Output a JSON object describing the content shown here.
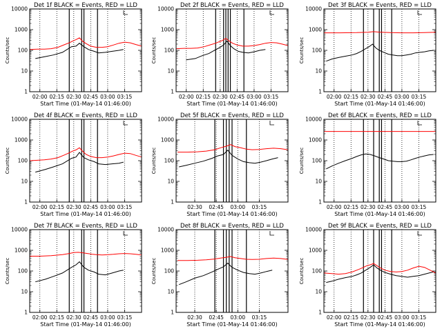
{
  "figure": {
    "background": "#ffffff",
    "axis_color": "#000000",
    "events_color": "#000000",
    "lld_color": "#ff0000"
  },
  "chart_data": [
    {
      "type": "line",
      "title": "Det 1f BLACK = Events, RED = LLD",
      "xlabel": "Start Time (01-May-14 01:46:00)",
      "ylabel": "Counts/sec",
      "yscale": "log",
      "ylim": [
        1,
        10000
      ],
      "ytick_labels": [
        "1",
        "10",
        "100",
        "1000",
        "10000"
      ],
      "xtick_labels": [
        "02:00",
        "02:15",
        "02:30",
        "02:45",
        "03:00",
        "03:15"
      ],
      "xlim_min": [
        111,
        210
      ],
      "xtick_min": [
        120,
        135,
        150,
        165,
        180,
        195
      ],
      "markers_min": [
        146,
        157,
        159,
        171
      ],
      "series": [
        {
          "name": "Events",
          "x_min": [
            116,
            125,
            132,
            140,
            148,
            152,
            155,
            159,
            163,
            168,
            172,
            178,
            184,
            190,
            194
          ],
          "y": [
            40,
            50,
            60,
            80,
            150,
            160,
            220,
            150,
            110,
            90,
            75,
            80,
            90,
            100,
            110
          ]
        },
        {
          "name": "LLD",
          "x_min": [
            111,
            118,
            124,
            130,
            136,
            142,
            146,
            149,
            152,
            155,
            158,
            161,
            165,
            170,
            175,
            180,
            185,
            190,
            195,
            200,
            205,
            210
          ],
          "y": [
            110,
            115,
            115,
            120,
            140,
            190,
            230,
            280,
            330,
            400,
            270,
            210,
            160,
            140,
            140,
            150,
            180,
            220,
            250,
            230,
            190,
            160
          ]
        }
      ]
    },
    {
      "type": "line",
      "title": "Det 2f BLACK = Events, RED = LLD",
      "xlabel": "Start Time (01-May-14 01:46:00)",
      "ylabel": "Counts/sec",
      "yscale": "log",
      "ylim": [
        1,
        10000
      ],
      "ytick_labels": [
        "1",
        "10",
        "100",
        "1000",
        "10000"
      ],
      "xtick_labels": [
        "02:00",
        "02:15",
        "02:30",
        "02:45",
        "03:00",
        "03:15"
      ],
      "xlim_min": [
        111,
        210
      ],
      "xtick_min": [
        120,
        135,
        150,
        165,
        180,
        195
      ],
      "markers_min": [
        146,
        153,
        155,
        157,
        159,
        171
      ],
      "series": [
        {
          "name": "Events",
          "x_min": [
            120,
            128,
            134,
            140,
            145,
            150,
            153,
            156,
            159,
            162,
            166,
            170,
            175,
            180,
            185,
            190
          ],
          "y": [
            35,
            40,
            55,
            70,
            100,
            140,
            180,
            280,
            170,
            120,
            90,
            80,
            75,
            85,
            100,
            110
          ]
        },
        {
          "name": "LLD",
          "x_min": [
            111,
            118,
            124,
            130,
            136,
            142,
            146,
            149,
            152,
            155,
            158,
            161,
            165,
            170,
            175,
            180,
            185,
            190,
            195,
            200,
            205,
            210
          ],
          "y": [
            120,
            125,
            125,
            130,
            150,
            190,
            220,
            260,
            300,
            380,
            280,
            220,
            180,
            160,
            160,
            170,
            190,
            220,
            240,
            230,
            200,
            170
          ]
        }
      ]
    },
    {
      "type": "line",
      "title": "Det 3f BLACK = Events, RED = LLD",
      "xlabel": "Start Time (01-May-14 01:46:00)",
      "ylabel": "Counts/sec",
      "yscale": "log",
      "ylim": [
        1,
        10000
      ],
      "ytick_labels": [
        "1",
        "10",
        "100",
        "1000",
        "10000"
      ],
      "xtick_labels": [
        "02:00",
        "02:15",
        "02:30",
        "02:45",
        "03:00",
        "03:15"
      ],
      "xlim_min": [
        111,
        210
      ],
      "xtick_min": [
        120,
        135,
        150,
        165,
        180,
        195
      ],
      "markers_min": [
        146,
        155,
        160,
        162,
        171
      ],
      "series": [
        {
          "name": "Events",
          "x_min": [
            113,
            118,
            124,
            130,
            136,
            140,
            144,
            148,
            151,
            154,
            157,
            160,
            164,
            168,
            172,
            176,
            180,
            184,
            188,
            192,
            196,
            200,
            204,
            208
          ],
          "y": [
            30,
            38,
            45,
            52,
            60,
            70,
            90,
            120,
            150,
            200,
            130,
            100,
            80,
            65,
            60,
            55,
            55,
            60,
            65,
            75,
            80,
            85,
            95,
            100
          ]
        },
        {
          "name": "LLD",
          "x_min": [
            111,
            125,
            140,
            150,
            155,
            160,
            170,
            180,
            190,
            200,
            210
          ],
          "y": [
            700,
            700,
            720,
            750,
            800,
            760,
            720,
            700,
            700,
            720,
            750
          ]
        }
      ]
    },
    {
      "type": "line",
      "title": "Det 4f BLACK = Events, RED = LLD",
      "xlabel": "Start Time (01-May-14 01:46:00)",
      "ylabel": "Counts/sec",
      "yscale": "log",
      "ylim": [
        1,
        10000
      ],
      "ytick_labels": [
        "1",
        "10",
        "100",
        "1000",
        "10000"
      ],
      "xtick_labels": [
        "02:00",
        "02:15",
        "02:30",
        "02:45",
        "03:00",
        "03:15"
      ],
      "xlim_min": [
        111,
        210
      ],
      "xtick_min": [
        120,
        135,
        150,
        165,
        180,
        195
      ],
      "markers_min": [
        146,
        157,
        159,
        171
      ],
      "series": [
        {
          "name": "Events",
          "x_min": [
            116,
            125,
            132,
            140,
            148,
            152,
            155,
            159,
            163,
            168,
            172,
            178,
            184,
            190,
            194
          ],
          "y": [
            28,
            38,
            50,
            70,
            130,
            150,
            250,
            140,
            110,
            90,
            70,
            65,
            70,
            75,
            85
          ]
        },
        {
          "name": "LLD",
          "x_min": [
            111,
            118,
            124,
            130,
            136,
            142,
            146,
            149,
            152,
            155,
            158,
            161,
            165,
            170,
            175,
            180,
            185,
            190,
            195,
            200,
            205,
            210
          ],
          "y": [
            100,
            105,
            110,
            120,
            140,
            190,
            240,
            290,
            330,
            420,
            280,
            200,
            160,
            140,
            140,
            150,
            170,
            200,
            230,
            220,
            180,
            150
          ]
        }
      ]
    },
    {
      "type": "line",
      "title": "Det 5f BLACK = Events, RED = LLD",
      "xlabel": "Start Time (01-May-14 01:46:00)",
      "ylabel": "Counts/sec",
      "yscale": "log",
      "ylim": [
        1,
        10000
      ],
      "ytick_labels": [
        "1",
        "10",
        "100",
        "1000",
        "10000"
      ],
      "xtick_labels": [
        "02:30",
        "02:45",
        "03:00",
        "03:15"
      ],
      "xlim_min": [
        137,
        215
      ],
      "xtick_min": [
        150,
        165,
        180,
        195
      ],
      "markers_min": [
        164,
        170,
        172,
        174,
        176,
        186
      ],
      "series": [
        {
          "name": "Events",
          "x_min": [
            139,
            144,
            150,
            156,
            162,
            166,
            170,
            173,
            176,
            180,
            184,
            188,
            192,
            196,
            200,
            204,
            208
          ],
          "y": [
            50,
            60,
            75,
            95,
            130,
            170,
            200,
            320,
            180,
            120,
            90,
            80,
            75,
            85,
            100,
            120,
            140
          ]
        },
        {
          "name": "LLD",
          "x_min": [
            138,
            145,
            152,
            158,
            164,
            168,
            172,
            175,
            178,
            182,
            186,
            190,
            195,
            200,
            205,
            210,
            215
          ],
          "y": [
            260,
            260,
            270,
            290,
            340,
            420,
            500,
            600,
            480,
            420,
            360,
            340,
            350,
            380,
            400,
            380,
            340
          ]
        }
      ]
    },
    {
      "type": "line",
      "title": "Det 6f BLACK = Events, RED = LLD",
      "xlabel": "Start Time (01-May-14 01:46:00)",
      "ylabel": "Counts/sec",
      "yscale": "log",
      "ylim": [
        1,
        10000
      ],
      "ytick_labels": [
        "1",
        "10",
        "100",
        "1000",
        "10000"
      ],
      "xtick_labels": [
        "02:00",
        "02:15",
        "02:30",
        "02:45",
        "03:00",
        "03:15"
      ],
      "xlim_min": [
        111,
        210
      ],
      "xtick_min": [
        120,
        135,
        150,
        165,
        180,
        195
      ],
      "markers_min": [
        146,
        155,
        160,
        162,
        171
      ],
      "series": [
        {
          "name": "Events",
          "x_min": [
            113,
            118,
            124,
            130,
            136,
            140,
            144,
            148,
            152,
            156,
            160,
            164,
            168,
            172,
            176,
            180,
            184,
            188,
            192,
            196,
            200,
            204,
            208
          ],
          "y": [
            40,
            55,
            75,
            100,
            130,
            160,
            190,
            210,
            200,
            170,
            140,
            120,
            100,
            95,
            90,
            90,
            95,
            110,
            130,
            150,
            170,
            190,
            200
          ]
        },
        {
          "name": "LLD",
          "x_min": [
            111,
            210
          ],
          "y": [
            2600,
            2600
          ]
        }
      ]
    },
    {
      "type": "line",
      "title": "Det 7f BLACK = Events, RED = LLD",
      "xlabel": "Start Time (01-May-14 01:46:00)",
      "ylabel": "Counts/sec",
      "yscale": "log",
      "ylim": [
        1,
        10000
      ],
      "ytick_labels": [
        "1",
        "10",
        "100",
        "1000",
        "10000"
      ],
      "xtick_labels": [
        "02:00",
        "02:15",
        "02:30",
        "02:45",
        "03:00",
        "03:15"
      ],
      "xlim_min": [
        111,
        210
      ],
      "xtick_min": [
        120,
        135,
        150,
        165,
        180,
        195
      ],
      "markers_min": [
        146,
        157,
        159,
        171
      ],
      "series": [
        {
          "name": "Events",
          "x_min": [
            116,
            125,
            132,
            140,
            148,
            152,
            155,
            159,
            163,
            168,
            172,
            178,
            184,
            190,
            194
          ],
          "y": [
            30,
            40,
            55,
            80,
            150,
            200,
            280,
            150,
            110,
            90,
            70,
            65,
            80,
            100,
            110
          ]
        },
        {
          "name": "LLD",
          "x_min": [
            111,
            120,
            130,
            140,
            146,
            150,
            154,
            158,
            162,
            166,
            170,
            175,
            180,
            185,
            190,
            195,
            200,
            205,
            210
          ],
          "y": [
            520,
            520,
            550,
            620,
            700,
            780,
            800,
            760,
            700,
            650,
            620,
            600,
            610,
            640,
            680,
            700,
            680,
            640,
            600
          ]
        }
      ]
    },
    {
      "type": "line",
      "title": "Det 8f BLACK = Events, RED = LLD",
      "xlabel": "Start Time (01-May-14 01:46:00)",
      "ylabel": "Counts/sec",
      "yscale": "log",
      "ylim": [
        1,
        10000
      ],
      "ytick_labels": [
        "1",
        "10",
        "100",
        "1000",
        "10000"
      ],
      "xtick_labels": [
        "02:30",
        "02:45",
        "03:00",
        "03:15"
      ],
      "xlim_min": [
        137,
        215
      ],
      "xtick_min": [
        150,
        165,
        180,
        195
      ],
      "markers_min": [
        164,
        170,
        172,
        174,
        176,
        186
      ],
      "series": [
        {
          "name": "Events",
          "x_min": [
            139,
            144,
            150,
            156,
            162,
            166,
            170,
            173,
            176,
            180,
            184,
            188,
            192,
            196,
            200,
            204
          ],
          "y": [
            22,
            30,
            45,
            60,
            90,
            120,
            160,
            240,
            150,
            110,
            85,
            75,
            70,
            80,
            95,
            110
          ]
        },
        {
          "name": "LLD",
          "x_min": [
            138,
            145,
            152,
            158,
            164,
            168,
            172,
            175,
            178,
            182,
            186,
            190,
            195,
            200,
            205,
            210,
            215
          ],
          "y": [
            320,
            320,
            330,
            350,
            380,
            420,
            460,
            500,
            440,
            400,
            370,
            360,
            370,
            400,
            420,
            400,
            360
          ]
        }
      ]
    },
    {
      "type": "line",
      "title": "Det 9f BLACK = Events, RED = LLD",
      "xlabel": "Start Time (01-May-14 01:46:00)",
      "ylabel": "Counts/sec",
      "yscale": "log",
      "ylim": [
        1,
        10000
      ],
      "ytick_labels": [
        "1",
        "10",
        "100",
        "1000",
        "10000"
      ],
      "xtick_labels": [
        "02:00",
        "02:15",
        "02:30",
        "02:45",
        "03:00",
        "03:15"
      ],
      "xlim_min": [
        111,
        210
      ],
      "xtick_min": [
        120,
        135,
        150,
        165,
        180,
        195
      ],
      "markers_min": [
        146,
        155,
        160,
        162,
        171
      ],
      "series": [
        {
          "name": "Events",
          "x_min": [
            113,
            118,
            124,
            130,
            136,
            140,
            144,
            148,
            152,
            155,
            158,
            161,
            165,
            170,
            175,
            180,
            185,
            190,
            195,
            200,
            204,
            208
          ],
          "y": [
            28,
            32,
            40,
            48,
            55,
            65,
            80,
            110,
            150,
            200,
            140,
            110,
            85,
            70,
            60,
            55,
            50,
            55,
            60,
            70,
            80,
            90
          ]
        },
        {
          "name": "LLD",
          "x_min": [
            111,
            118,
            124,
            130,
            136,
            142,
            146,
            149,
            152,
            155,
            158,
            161,
            165,
            170,
            175,
            180,
            185,
            190,
            195,
            200,
            205,
            210
          ],
          "y": [
            80,
            75,
            70,
            75,
            90,
            120,
            150,
            180,
            200,
            230,
            180,
            140,
            110,
            95,
            90,
            95,
            110,
            140,
            170,
            150,
            110,
            80
          ]
        }
      ]
    }
  ]
}
